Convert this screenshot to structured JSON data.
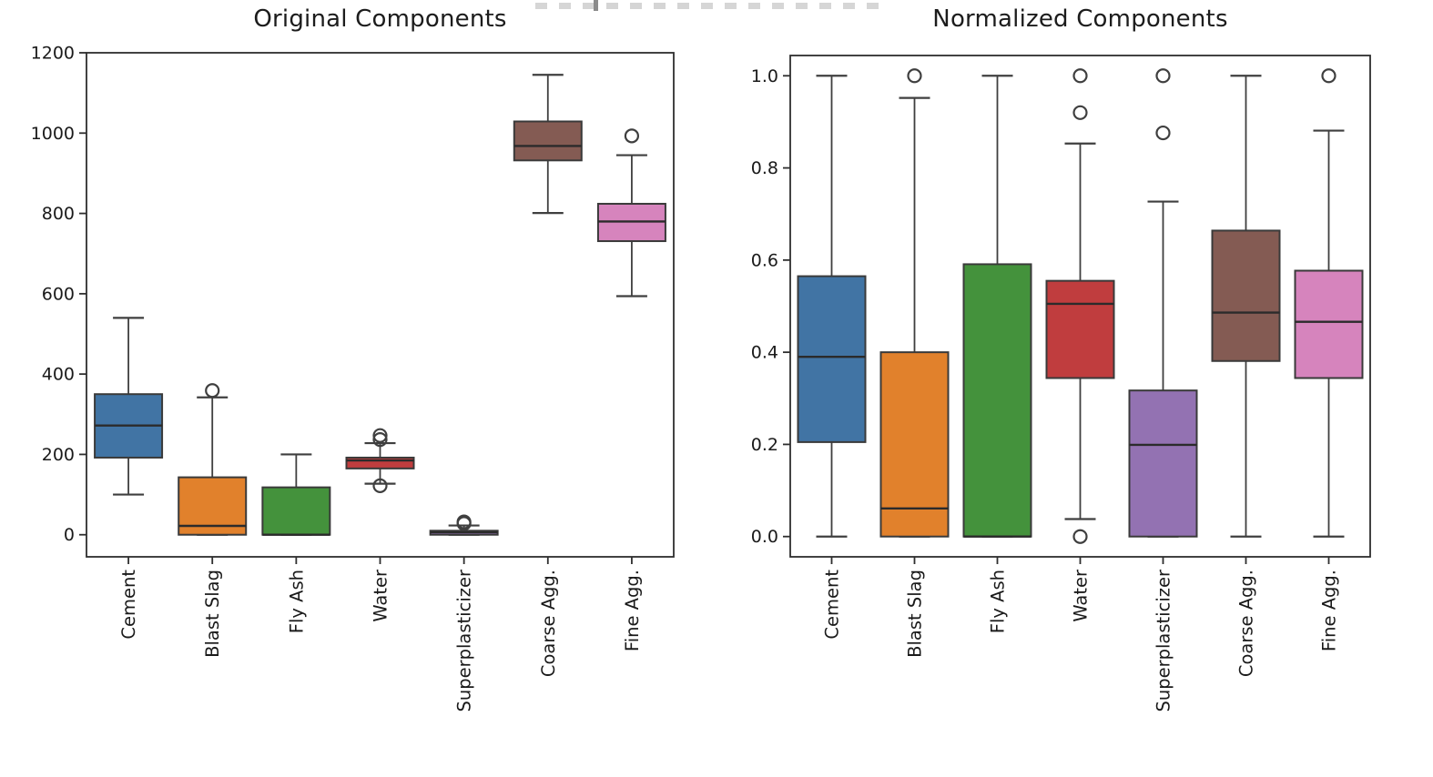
{
  "figure": {
    "left_title": "Original Components",
    "right_title": "Normalized Components"
  },
  "chart_data": [
    {
      "type": "boxplot",
      "title": "Original Components",
      "xlabel": "",
      "ylabel": "",
      "grid": false,
      "ylim": [
        -55,
        1200
      ],
      "yticks": [
        {
          "value": 0,
          "label": "0"
        },
        {
          "value": 200,
          "label": "200"
        },
        {
          "value": 400,
          "label": "400"
        },
        {
          "value": 600,
          "label": "600"
        },
        {
          "value": 800,
          "label": "800"
        },
        {
          "value": 1000,
          "label": "1000"
        },
        {
          "value": 1200,
          "label": "1200"
        }
      ],
      "categories": [
        "Cement",
        "Blast Slag",
        "Fly Ash",
        "Water",
        "Superplasticizer",
        "Coarse Agg.",
        "Fine Agg."
      ],
      "boxes": [
        {
          "label": "Cement",
          "color": "#4174a4",
          "whislo": 100,
          "q1": 192,
          "med": 272,
          "q3": 350,
          "whishi": 540,
          "fliers": []
        },
        {
          "label": "Blast Slag",
          "color": "#e1812c",
          "whislo": 0,
          "q1": 0,
          "med": 22,
          "q3": 143,
          "whishi": 342,
          "fliers": [
            359
          ]
        },
        {
          "label": "Fly Ash",
          "color": "#44923c",
          "whislo": 0,
          "q1": 0,
          "med": 0,
          "q3": 118,
          "whishi": 200,
          "fliers": []
        },
        {
          "label": "Water",
          "color": "#c03d3e",
          "whislo": 127,
          "q1": 165,
          "med": 185,
          "q3": 192,
          "whishi": 228,
          "fliers": [
            122,
            237,
            247
          ]
        },
        {
          "label": "Superplasticizer",
          "color": "#9372b2",
          "whislo": 0,
          "q1": 0,
          "med": 6,
          "q3": 10,
          "whishi": 23,
          "fliers": [
            28,
            32
          ]
        },
        {
          "label": "Coarse Agg.",
          "color": "#845b53",
          "whislo": 801,
          "q1": 932,
          "med": 968,
          "q3": 1029,
          "whishi": 1145,
          "fliers": []
        },
        {
          "label": "Fine Agg.",
          "color": "#d684bd",
          "whislo": 594,
          "q1": 731,
          "med": 780,
          "q3": 824,
          "whishi": 945,
          "fliers": [
            993
          ]
        }
      ]
    },
    {
      "type": "boxplot",
      "title": "Normalized Components",
      "xlabel": "",
      "ylabel": "",
      "grid": false,
      "ylim": [
        -0.044,
        1.044
      ],
      "yticks": [
        {
          "value": 0.0,
          "label": "0.0"
        },
        {
          "value": 0.2,
          "label": "0.2"
        },
        {
          "value": 0.4,
          "label": "0.4"
        },
        {
          "value": 0.6,
          "label": "0.6"
        },
        {
          "value": 0.8,
          "label": "0.8"
        },
        {
          "value": 1.0,
          "label": "1.0"
        }
      ],
      "categories": [
        "Cement",
        "Blast Slag",
        "Fly Ash",
        "Water",
        "Superplasticizer",
        "Coarse Agg.",
        "Fine Agg."
      ],
      "boxes": [
        {
          "label": "Cement",
          "color": "#4174a4",
          "whislo": 0.0,
          "q1": 0.205,
          "med": 0.39,
          "q3": 0.565,
          "whishi": 1.0,
          "fliers": []
        },
        {
          "label": "Blast Slag",
          "color": "#e1812c",
          "whislo": 0.0,
          "q1": 0.0,
          "med": 0.061,
          "q3": 0.4,
          "whishi": 0.952,
          "fliers": [
            1.0
          ]
        },
        {
          "label": "Fly Ash",
          "color": "#44923c",
          "whislo": 0.0,
          "q1": 0.0,
          "med": 0.0,
          "q3": 0.591,
          "whishi": 1.0,
          "fliers": []
        },
        {
          "label": "Water",
          "color": "#c03d3e",
          "whislo": 0.038,
          "q1": 0.344,
          "med": 0.505,
          "q3": 0.555,
          "whishi": 0.853,
          "fliers": [
            0.0,
            0.92,
            1.0
          ]
        },
        {
          "label": "Superplasticizer",
          "color": "#9372b2",
          "whislo": 0.0,
          "q1": 0.0,
          "med": 0.199,
          "q3": 0.317,
          "whishi": 0.727,
          "fliers": [
            0.876,
            1.0
          ]
        },
        {
          "label": "Coarse Agg.",
          "color": "#845b53",
          "whislo": 0.0,
          "q1": 0.381,
          "med": 0.486,
          "q3": 0.664,
          "whishi": 1.0,
          "fliers": []
        },
        {
          "label": "Fine Agg.",
          "color": "#d684bd",
          "whislo": 0.0,
          "q1": 0.344,
          "med": 0.466,
          "q3": 0.577,
          "whishi": 0.881,
          "fliers": [
            1.0
          ]
        }
      ]
    }
  ],
  "style": {
    "axis_color": "#2e2e2e",
    "text_color": "#1a1a1a",
    "box_edge_color": "#3a3a3a",
    "median_color": "#2b2b2b",
    "whisker_color": "#3f3f3f"
  }
}
